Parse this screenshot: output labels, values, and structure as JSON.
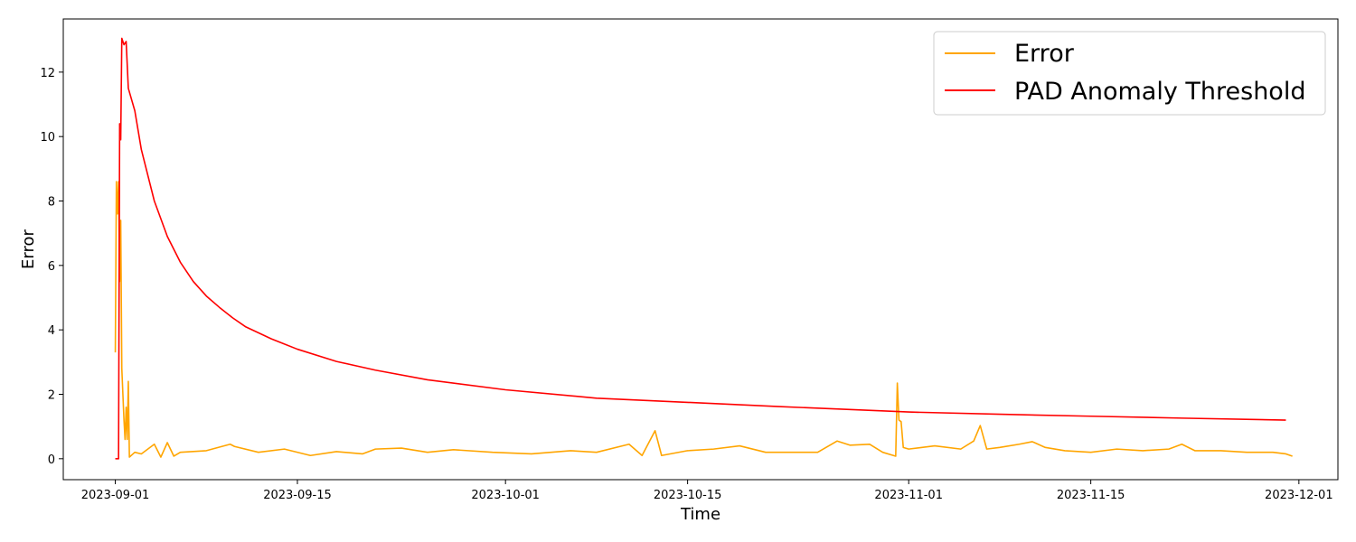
{
  "chart_data": {
    "type": "line",
    "title": "",
    "xlabel": "Time",
    "ylabel": "Error",
    "x_axis": "date",
    "xlim": [
      "2023-08-28",
      "2023-12-04"
    ],
    "ylim": [
      -0.65,
      13.65
    ],
    "x_ticks": [
      "2023-09-01",
      "2023-09-15",
      "2023-10-01",
      "2023-10-15",
      "2023-11-01",
      "2023-11-15",
      "2023-12-01"
    ],
    "y_ticks": [
      0,
      2,
      4,
      6,
      8,
      10,
      12
    ],
    "grid": false,
    "legend_position": "top-right",
    "series": [
      {
        "name": "Error",
        "color": "#ffa500",
        "points": [
          [
            "2023-09-01 00:00",
            3.3
          ],
          [
            "2023-09-01 02:00",
            8.6
          ],
          [
            "2023-09-01 04:00",
            7.6
          ],
          [
            "2023-09-01 06:00",
            8.6
          ],
          [
            "2023-09-01 08:00",
            5.5
          ],
          [
            "2023-09-01 10:00",
            7.4
          ],
          [
            "2023-09-01 12:00",
            2.8
          ],
          [
            "2023-09-01 16:00",
            1.2
          ],
          [
            "2023-09-01 18:00",
            0.6
          ],
          [
            "2023-09-01 20:00",
            1.6
          ],
          [
            "2023-09-01 22:00",
            0.6
          ],
          [
            "2023-09-02 00:00",
            2.4
          ],
          [
            "2023-09-02 02:00",
            0.05
          ],
          [
            "2023-09-02 12:00",
            0.2
          ],
          [
            "2023-09-03 00:00",
            0.15
          ],
          [
            "2023-09-04 00:00",
            0.45
          ],
          [
            "2023-09-04 12:00",
            0.05
          ],
          [
            "2023-09-05 00:00",
            0.5
          ],
          [
            "2023-09-05 12:00",
            0.08
          ],
          [
            "2023-09-06 00:00",
            0.2
          ],
          [
            "2023-09-08 00:00",
            0.25
          ],
          [
            "2023-09-09 20:00",
            0.45
          ],
          [
            "2023-09-10 04:00",
            0.38
          ],
          [
            "2023-09-12 00:00",
            0.2
          ],
          [
            "2023-09-14 00:00",
            0.3
          ],
          [
            "2023-09-16 00:00",
            0.1
          ],
          [
            "2023-09-18 00:00",
            0.22
          ],
          [
            "2023-09-20 00:00",
            0.15
          ],
          [
            "2023-09-21 00:00",
            0.3
          ],
          [
            "2023-09-23 00:00",
            0.33
          ],
          [
            "2023-09-25 00:00",
            0.2
          ],
          [
            "2023-09-27 00:00",
            0.28
          ],
          [
            "2023-09-30 00:00",
            0.2
          ],
          [
            "2023-10-03 00:00",
            0.15
          ],
          [
            "2023-10-06 00:00",
            0.25
          ],
          [
            "2023-10-08 00:00",
            0.2
          ],
          [
            "2023-10-10 12:00",
            0.45
          ],
          [
            "2023-10-11 12:00",
            0.1
          ],
          [
            "2023-10-12 12:00",
            0.87
          ],
          [
            "2023-10-13 00:00",
            0.1
          ],
          [
            "2023-10-15 00:00",
            0.25
          ],
          [
            "2023-10-17 00:00",
            0.3
          ],
          [
            "2023-10-19 00:00",
            0.4
          ],
          [
            "2023-10-21 00:00",
            0.2
          ],
          [
            "2023-10-23 00:00",
            0.2
          ],
          [
            "2023-10-25 00:00",
            0.2
          ],
          [
            "2023-10-26 12:00",
            0.55
          ],
          [
            "2023-10-27 12:00",
            0.42
          ],
          [
            "2023-10-29 00:00",
            0.45
          ],
          [
            "2023-10-30 00:00",
            0.2
          ],
          [
            "2023-10-31 00:00",
            0.08
          ],
          [
            "2023-10-31 03:00",
            2.35
          ],
          [
            "2023-10-31 06:00",
            1.2
          ],
          [
            "2023-10-31 10:00",
            1.15
          ],
          [
            "2023-10-31 14:00",
            0.35
          ],
          [
            "2023-11-01 00:00",
            0.3
          ],
          [
            "2023-11-03 00:00",
            0.4
          ],
          [
            "2023-11-05 00:00",
            0.3
          ],
          [
            "2023-11-06 00:00",
            0.55
          ],
          [
            "2023-11-06 12:00",
            1.03
          ],
          [
            "2023-11-07 00:00",
            0.3
          ],
          [
            "2023-11-08 00:00",
            0.35
          ],
          [
            "2023-11-09 12:00",
            0.45
          ],
          [
            "2023-11-10 12:00",
            0.53
          ],
          [
            "2023-11-11 12:00",
            0.35
          ],
          [
            "2023-11-13 00:00",
            0.25
          ],
          [
            "2023-11-15 00:00",
            0.2
          ],
          [
            "2023-11-17 00:00",
            0.3
          ],
          [
            "2023-11-19 00:00",
            0.25
          ],
          [
            "2023-11-21 00:00",
            0.3
          ],
          [
            "2023-11-22 00:00",
            0.45
          ],
          [
            "2023-11-23 00:00",
            0.25
          ],
          [
            "2023-11-25 00:00",
            0.25
          ],
          [
            "2023-11-27 00:00",
            0.2
          ],
          [
            "2023-11-29 00:00",
            0.2
          ],
          [
            "2023-11-30 00:00",
            0.15
          ],
          [
            "2023-11-30 12:00",
            0.08
          ]
        ]
      },
      {
        "name": "PAD Anomaly Threshold",
        "color": "#ff0000",
        "points": [
          [
            "2023-09-01 00:00",
            0.0
          ],
          [
            "2023-09-01 06:00",
            0.0
          ],
          [
            "2023-09-01 08:00",
            10.4
          ],
          [
            "2023-09-01 10:00",
            9.9
          ],
          [
            "2023-09-01 12:00",
            13.05
          ],
          [
            "2023-09-01 16:00",
            12.85
          ],
          [
            "2023-09-01 20:00",
            12.95
          ],
          [
            "2023-09-02 00:00",
            11.5
          ],
          [
            "2023-09-02 12:00",
            10.8
          ],
          [
            "2023-09-03 00:00",
            9.6
          ],
          [
            "2023-09-04 00:00",
            8.0
          ],
          [
            "2023-09-05 00:00",
            6.9
          ],
          [
            "2023-09-06 00:00",
            6.1
          ],
          [
            "2023-09-07 00:00",
            5.5
          ],
          [
            "2023-09-08 00:00",
            5.05
          ],
          [
            "2023-09-09 00:00",
            4.7
          ],
          [
            "2023-09-10 00:00",
            4.38
          ],
          [
            "2023-09-11 00:00",
            4.1
          ],
          [
            "2023-09-13 00:00",
            3.72
          ],
          [
            "2023-09-15 00:00",
            3.4
          ],
          [
            "2023-09-18 00:00",
            3.02
          ],
          [
            "2023-09-21 00:00",
            2.75
          ],
          [
            "2023-09-25 00:00",
            2.45
          ],
          [
            "2023-10-01 00:00",
            2.14
          ],
          [
            "2023-10-08 00:00",
            1.88
          ],
          [
            "2023-10-15 00:00",
            1.75
          ],
          [
            "2023-10-22 00:00",
            1.62
          ],
          [
            "2023-11-01 00:00",
            1.45
          ],
          [
            "2023-11-08 00:00",
            1.38
          ],
          [
            "2023-11-15 00:00",
            1.32
          ],
          [
            "2023-11-22 00:00",
            1.26
          ],
          [
            "2023-11-30 00:00",
            1.2
          ]
        ]
      }
    ]
  }
}
